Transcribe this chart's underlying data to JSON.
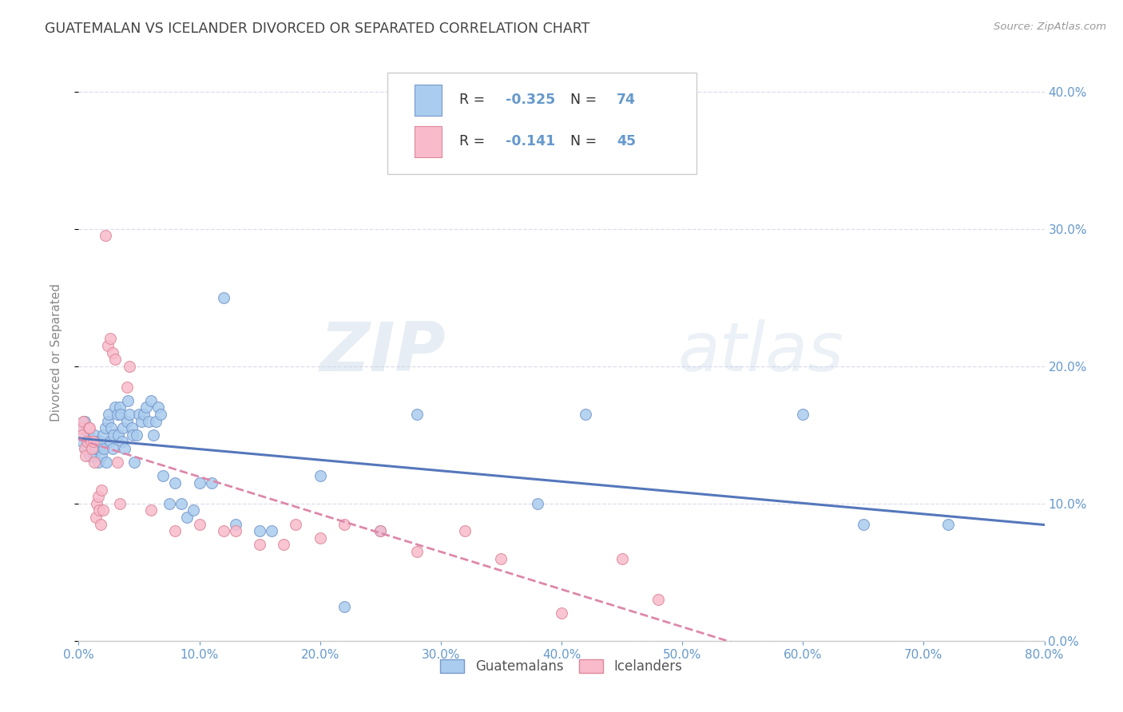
{
  "title": "GUATEMALAN VS ICELANDER DIVORCED OR SEPARATED CORRELATION CHART",
  "source": "Source: ZipAtlas.com",
  "ylabel": "Divorced or Separated",
  "xmin": 0.0,
  "xmax": 0.8,
  "ymin": 0.0,
  "ymax": 0.42,
  "watermark": "ZIPatlas",
  "blue_color": "#aaccee",
  "blue_edge": "#7799cc",
  "pink_color": "#f9bbcc",
  "pink_edge": "#dd8899",
  "line_blue_color": "#5577bb",
  "line_pink_color": "#dd88aa",
  "axis_label_color": "#6699cc",
  "ylabel_color": "#888888",
  "title_color": "#444444",
  "source_color": "#999999",
  "grid_color": "#ddddee",
  "blue_R": -0.325,
  "blue_N": 74,
  "pink_R": -0.141,
  "pink_N": 45,
  "guatemalans_x": [
    0.002,
    0.003,
    0.004,
    0.005,
    0.006,
    0.007,
    0.008,
    0.009,
    0.01,
    0.011,
    0.012,
    0.013,
    0.014,
    0.015,
    0.016,
    0.017,
    0.018,
    0.019,
    0.02,
    0.021,
    0.022,
    0.023,
    0.024,
    0.025,
    0.026,
    0.027,
    0.028,
    0.029,
    0.03,
    0.032,
    0.033,
    0.034,
    0.035,
    0.036,
    0.037,
    0.038,
    0.04,
    0.041,
    0.042,
    0.044,
    0.045,
    0.046,
    0.048,
    0.05,
    0.052,
    0.054,
    0.056,
    0.058,
    0.06,
    0.062,
    0.064,
    0.066,
    0.068,
    0.07,
    0.075,
    0.08,
    0.085,
    0.09,
    0.095,
    0.1,
    0.11,
    0.12,
    0.13,
    0.15,
    0.16,
    0.2,
    0.22,
    0.25,
    0.28,
    0.38,
    0.42,
    0.6,
    0.65,
    0.72
  ],
  "guatemalans_y": [
    0.155,
    0.145,
    0.15,
    0.16,
    0.14,
    0.145,
    0.15,
    0.135,
    0.14,
    0.145,
    0.135,
    0.15,
    0.14,
    0.145,
    0.13,
    0.14,
    0.145,
    0.135,
    0.15,
    0.14,
    0.155,
    0.13,
    0.16,
    0.165,
    0.145,
    0.155,
    0.14,
    0.15,
    0.17,
    0.165,
    0.15,
    0.17,
    0.165,
    0.145,
    0.155,
    0.14,
    0.16,
    0.175,
    0.165,
    0.155,
    0.15,
    0.13,
    0.15,
    0.165,
    0.16,
    0.165,
    0.17,
    0.16,
    0.175,
    0.15,
    0.16,
    0.17,
    0.165,
    0.12,
    0.1,
    0.115,
    0.1,
    0.09,
    0.095,
    0.115,
    0.115,
    0.25,
    0.085,
    0.08,
    0.08,
    0.12,
    0.025,
    0.08,
    0.165,
    0.1,
    0.165,
    0.165,
    0.085,
    0.085
  ],
  "icelanders_x": [
    0.002,
    0.003,
    0.004,
    0.005,
    0.006,
    0.007,
    0.008,
    0.009,
    0.01,
    0.011,
    0.012,
    0.013,
    0.014,
    0.015,
    0.016,
    0.017,
    0.018,
    0.019,
    0.02,
    0.022,
    0.024,
    0.026,
    0.028,
    0.03,
    0.032,
    0.034,
    0.04,
    0.042,
    0.06,
    0.08,
    0.1,
    0.12,
    0.13,
    0.15,
    0.17,
    0.18,
    0.2,
    0.22,
    0.25,
    0.28,
    0.32,
    0.35,
    0.4,
    0.45,
    0.48
  ],
  "icelanders_y": [
    0.155,
    0.15,
    0.16,
    0.14,
    0.135,
    0.145,
    0.155,
    0.155,
    0.145,
    0.14,
    0.145,
    0.13,
    0.09,
    0.1,
    0.105,
    0.095,
    0.085,
    0.11,
    0.095,
    0.295,
    0.215,
    0.22,
    0.21,
    0.205,
    0.13,
    0.1,
    0.185,
    0.2,
    0.095,
    0.08,
    0.085,
    0.08,
    0.08,
    0.07,
    0.07,
    0.085,
    0.075,
    0.085,
    0.08,
    0.065,
    0.08,
    0.06,
    0.02,
    0.06,
    0.03
  ],
  "x_ticks": [
    0.0,
    0.1,
    0.2,
    0.3,
    0.4,
    0.5,
    0.6,
    0.7,
    0.8
  ],
  "y_ticks": [
    0.0,
    0.1,
    0.2,
    0.3,
    0.4
  ]
}
